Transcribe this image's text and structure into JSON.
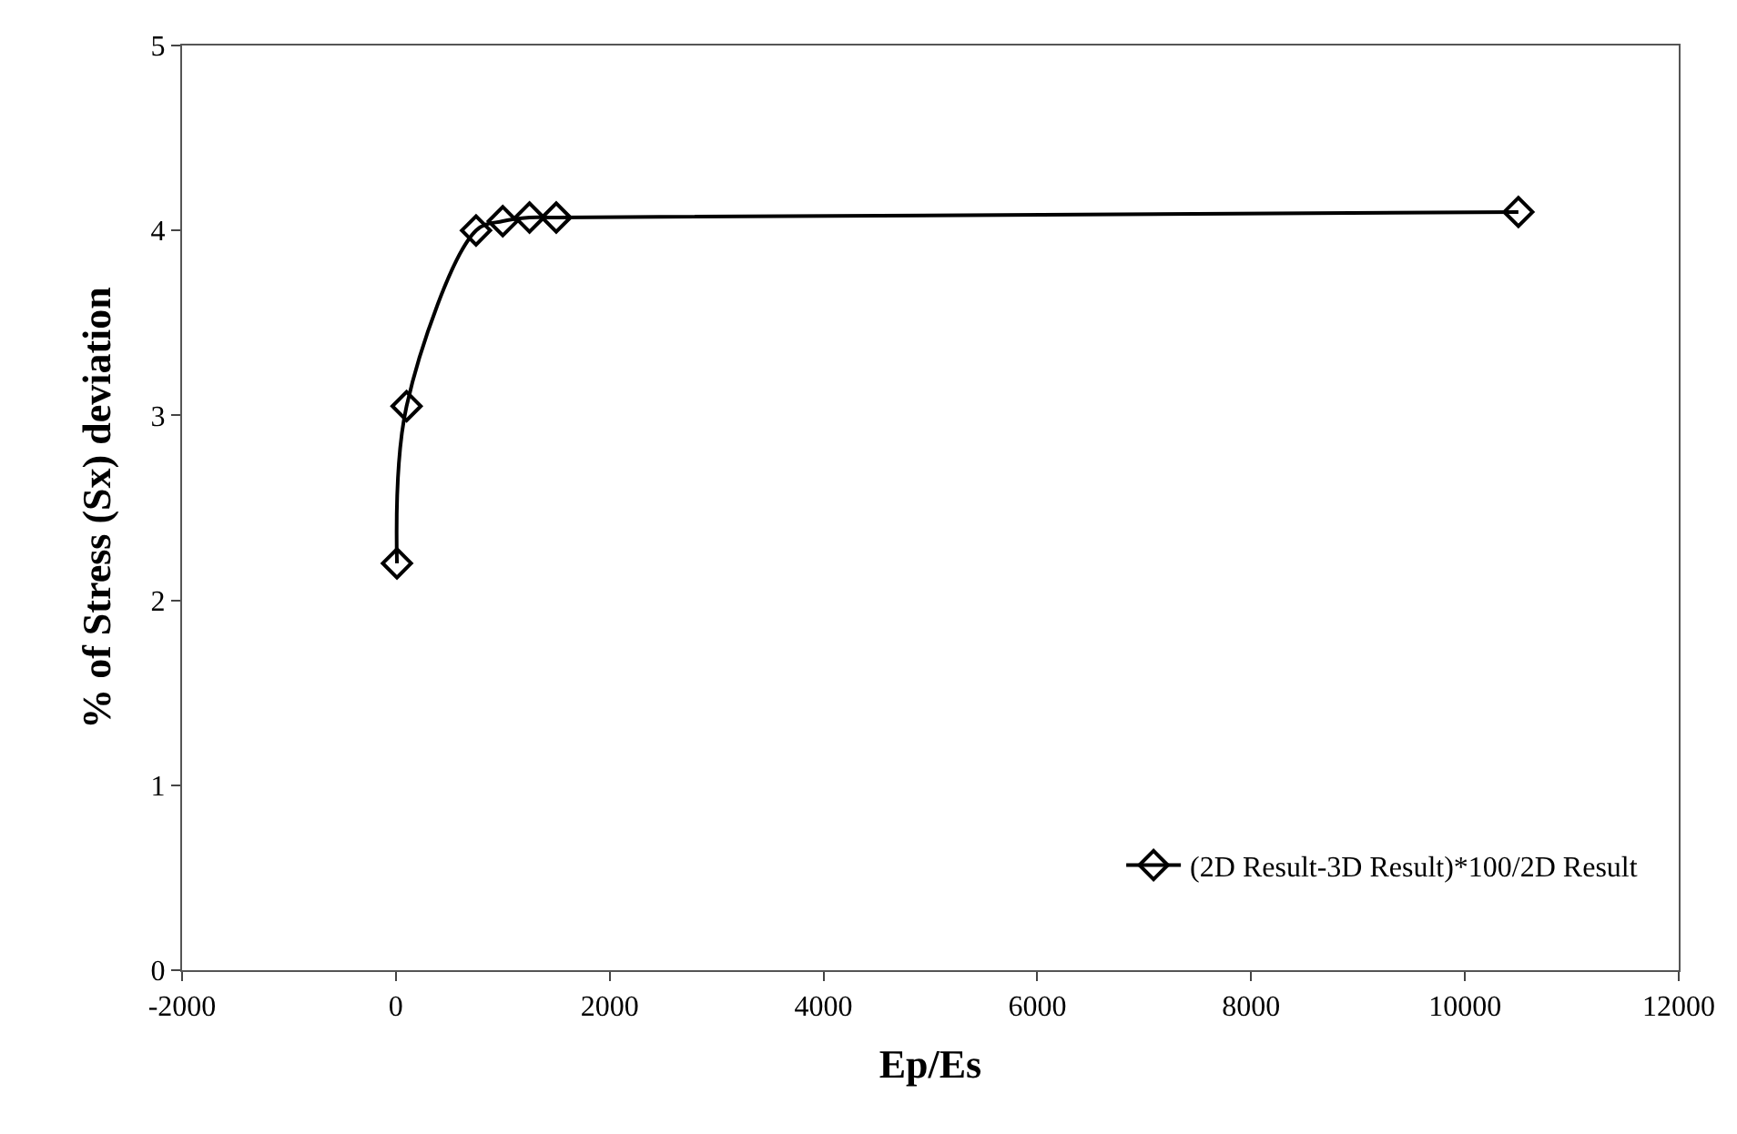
{
  "chart_data": {
    "type": "line",
    "xlabel": "Ep/Es",
    "ylabel": "% of Stress (Sx) deviation",
    "x": [
      10,
      100,
      750,
      1000,
      1250,
      1500,
      10500
    ],
    "series": [
      {
        "name": "(2D Result-3D Result)*100/2D Result",
        "color": "#000000",
        "values": [
          2.2,
          3.05,
          4.0,
          4.05,
          4.07,
          4.07,
          4.1
        ]
      }
    ],
    "xlim": [
      -2000,
      12000
    ],
    "xticks": [
      -2000,
      0,
      2000,
      4000,
      6000,
      8000,
      10000,
      12000
    ],
    "ylim": [
      0,
      5
    ],
    "yticks": [
      0,
      1,
      2,
      3,
      4,
      5
    ],
    "legend": "bottom right",
    "marker": "diamond",
    "line_style": "solid"
  }
}
